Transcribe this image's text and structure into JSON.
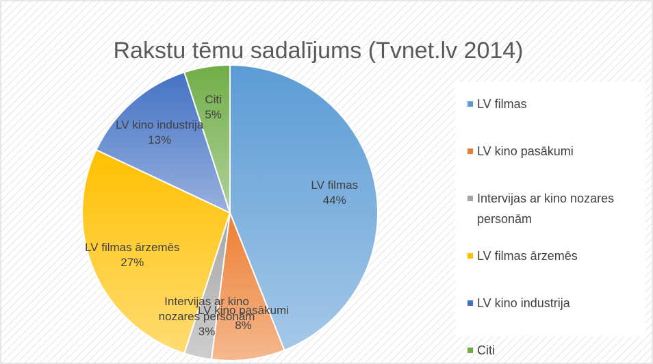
{
  "chart_data": {
    "type": "pie",
    "title": "Rakstu tēmu sadalījums (Tvnet.lv 2014)",
    "categories": [
      "LV filmas",
      "LV kino pasākumi",
      "Intervijas ar kino nozares personām",
      "LV filmas ārzemēs",
      "LV kino industrija",
      "Citi"
    ],
    "values": [
      44,
      8,
      3,
      27,
      13,
      5
    ],
    "value_labels": [
      "44%",
      "8%",
      "3%",
      "27%",
      "13%",
      "5%"
    ],
    "colors": [
      "#5b9bd5",
      "#ed7d31",
      "#a5a5a5",
      "#ffc000",
      "#4472c4",
      "#70ad47"
    ],
    "legend": "right"
  }
}
